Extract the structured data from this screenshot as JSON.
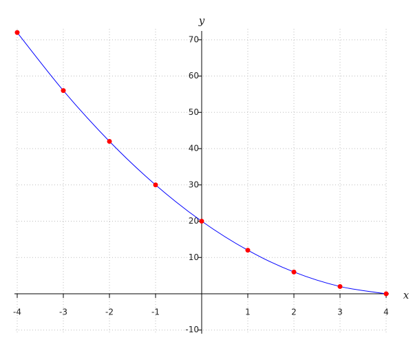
{
  "chart_data": {
    "type": "line",
    "x_label": "x",
    "y_label": "y",
    "x": [
      -4,
      -3,
      -2,
      -1,
      0,
      1,
      2,
      3,
      4
    ],
    "series": [
      {
        "color": "#0000ff",
        "marker_color": "#ff0000",
        "values": [
          72,
          56,
          42,
          30,
          20,
          12,
          6,
          2,
          0
        ]
      }
    ],
    "xlim": [
      -4,
      4
    ],
    "ylim": [
      -11,
      73
    ],
    "xticks": [
      -4,
      -3,
      -2,
      -1,
      1,
      2,
      3,
      4
    ],
    "yticks": [
      -10,
      10,
      20,
      30,
      40,
      50,
      60,
      70
    ],
    "grid": true
  }
}
